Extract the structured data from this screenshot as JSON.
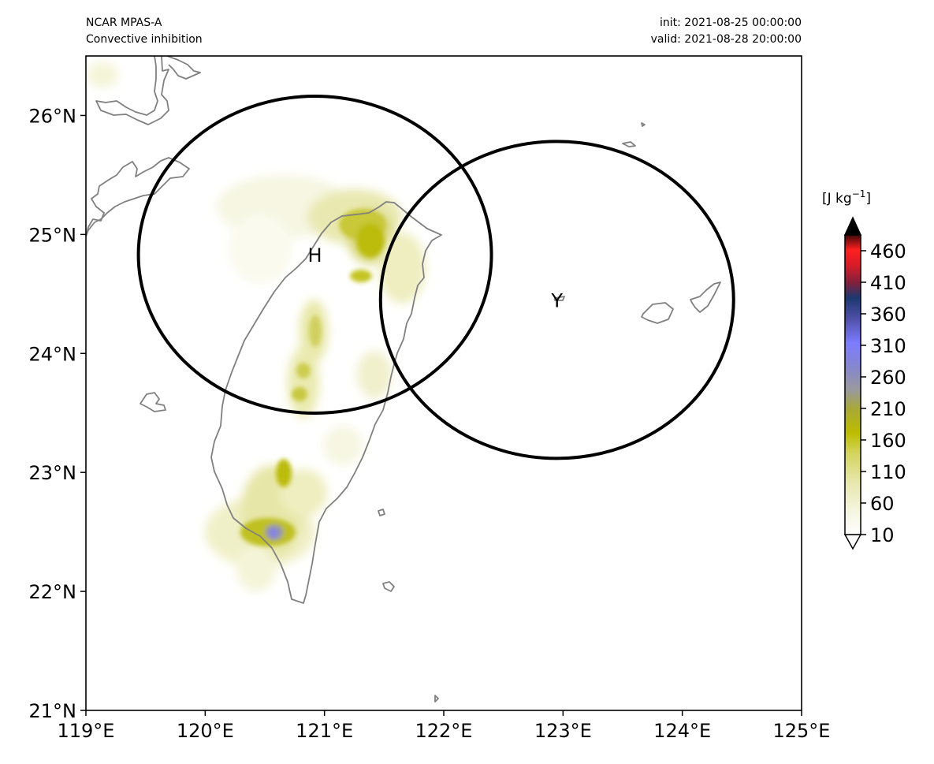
{
  "header": {
    "source": "NCAR MPAS-A",
    "field": "Convective inhibition",
    "init": "init: 2021-08-25 00:00:00",
    "valid": "valid: 2021-08-28 20:00:00"
  },
  "map": {
    "lon_range": [
      119,
      125
    ],
    "lat_range": [
      21,
      26.5
    ],
    "lon_ticks": [
      "119°E",
      "120°E",
      "121°E",
      "122°E",
      "123°E",
      "124°E",
      "125°E"
    ],
    "lat_ticks": [
      "21°N",
      "22°N",
      "23°N",
      "24°N",
      "25°N",
      "26°N"
    ],
    "coastline_color": "#808080",
    "markers": [
      {
        "label": "H",
        "lon": 120.92,
        "lat": 24.83,
        "radius_deg": 1.48
      },
      {
        "label": "Y",
        "lon": 122.95,
        "lat": 24.45,
        "radius_deg": 1.48
      }
    ]
  },
  "colorbar": {
    "units": "[J kg$^{-1}$]",
    "units_text": "[J kg",
    "units_sup": "−1",
    "units_end": "]",
    "ticks": [
      "10",
      "60",
      "110",
      "160",
      "210",
      "260",
      "310",
      "360",
      "410",
      "460"
    ],
    "extend": "both",
    "colors": [
      "#ffffff",
      "#f6f6e4",
      "#ececc4",
      "#e0e090",
      "#cccc40",
      "#bcbc00",
      "#a8a828",
      "#9a9a78",
      "#8c8cc0",
      "#7c7cff",
      "#5858b8",
      "#303880",
      "#801c40",
      "#d01828",
      "#ff2020",
      "#300808",
      "#000000"
    ]
  }
}
